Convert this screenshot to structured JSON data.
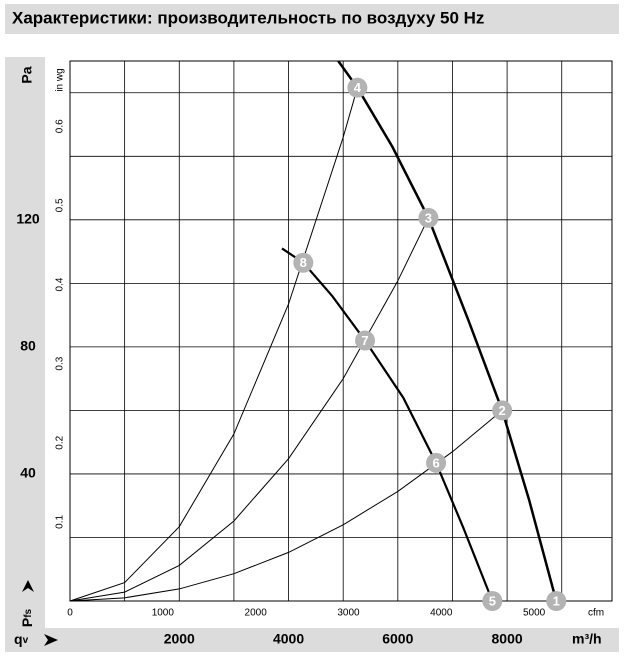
{
  "chart_data": {
    "type": "line",
    "title": "Характеристики: производительность по воздуху 50 Hz",
    "y_label": "Pa",
    "y2_label": "in wg",
    "x_label": "m³/h",
    "x2_label": "cfm",
    "y_symbol": "P",
    "y_symbol_sub": "fs",
    "x_symbol": "q",
    "x_symbol_sub": "v",
    "xlim": [
      0,
      9920
    ],
    "xticks": [
      2000,
      4000,
      6000,
      8000
    ],
    "x2lim": [
      0,
      5839
    ],
    "x2ticks": [
      0,
      1000,
      2000,
      3000,
      4000,
      5000
    ],
    "ylim": [
      0,
      170
    ],
    "yticks": [
      40,
      80,
      120
    ],
    "y2lim": [
      0,
      0.6825
    ],
    "y2ticks": [
      0.1,
      0.2,
      0.3,
      0.4,
      0.5,
      0.6
    ],
    "xgrid": [
      1000,
      2000,
      3000,
      4000,
      5000,
      6000,
      7000,
      8000,
      9000
    ],
    "ygrid": [
      20,
      40,
      60,
      80,
      100,
      120,
      140,
      160
    ],
    "grid": true,
    "series": [
      {
        "color": "#000000",
        "line_width": 2.5,
        "x": [
          4910,
          5260,
          5900,
          6560,
          7300,
          7910,
          8400,
          8900
        ],
        "values": [
          170,
          161.6,
          143,
          120.6,
          88,
          60,
          32,
          0
        ]
      },
      {
        "color": "#000000",
        "line_width": 2.2,
        "x": [
          3880,
          4270,
          4800,
          5400,
          6100,
          6700,
          7200,
          7730
        ],
        "values": [
          111,
          106.5,
          96,
          82,
          64,
          43.5,
          23,
          0
        ]
      },
      {
        "color": "#000000",
        "line_width": 1,
        "x": [
          0,
          1000,
          2000,
          3000,
          4000,
          5000,
          5260
        ],
        "values": [
          0,
          5.8,
          23.4,
          52.6,
          93.5,
          146,
          161.6
        ]
      },
      {
        "color": "#000000",
        "line_width": 1,
        "x": [
          0,
          1000,
          2000,
          3000,
          4000,
          5000,
          6000,
          6560
        ],
        "values": [
          0,
          2.8,
          11.2,
          25.2,
          44.8,
          70,
          100.8,
          120.6
        ]
      },
      {
        "color": "#000000",
        "line_width": 1,
        "x": [
          0,
          1000,
          2000,
          3000,
          4000,
          5000,
          6000,
          7000,
          7910
        ],
        "values": [
          0,
          1,
          3.8,
          8.6,
          15.3,
          24,
          34.5,
          47,
          60
        ]
      }
    ],
    "points": [
      {
        "label": "1",
        "x": 8900,
        "y": 0
      },
      {
        "label": "2",
        "x": 7910,
        "y": 60
      },
      {
        "label": "3",
        "x": 6560,
        "y": 120.6
      },
      {
        "label": "4",
        "x": 5260,
        "y": 161.6
      },
      {
        "label": "5",
        "x": 7730,
        "y": 0
      },
      {
        "label": "6",
        "x": 6700,
        "y": 43.5
      },
      {
        "label": "7",
        "x": 5400,
        "y": 82
      },
      {
        "label": "8",
        "x": 4270,
        "y": 106.5
      }
    ],
    "point_color": "#b3b3b3"
  }
}
